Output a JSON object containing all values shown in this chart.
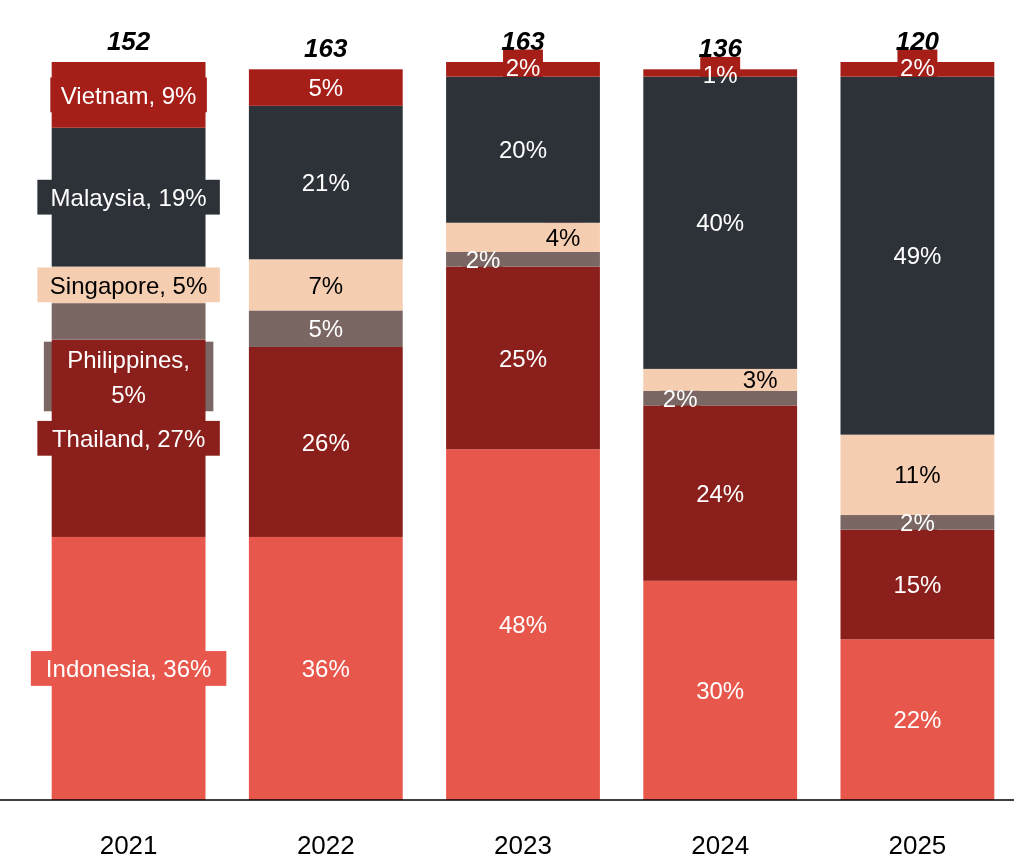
{
  "chart_data": {
    "type": "bar",
    "stacked": true,
    "categories": [
      "2021",
      "2022",
      "2023",
      "2024",
      "2025"
    ],
    "ylim": [
      0,
      101
    ],
    "tick_labels": "x",
    "series": [
      {
        "color": "#e8574c",
        "values": [
          36,
          36,
          48,
          30,
          22
        ],
        "value_labels": [
          "Indonesia, 36%",
          "36%",
          "48%",
          "30%",
          "22%"
        ]
      },
      {
        "color": "#8b1f1b",
        "values": [
          27,
          26,
          25,
          24,
          15
        ],
        "value_labels": [
          "Thailand, 27%",
          "26%",
          "25%",
          "24%",
          "15%"
        ]
      },
      {
        "color": "#7a6663",
        "values": [
          5,
          5,
          2,
          2,
          2
        ],
        "value_labels": [
          "Philippines, 5%",
          "5%",
          "2%",
          "2%",
          "2%"
        ]
      },
      {
        "color": "#f5cdb0",
        "values": [
          5,
          7,
          4,
          3,
          11
        ],
        "value_labels": [
          "Singapore, 5%",
          "7%",
          "4%",
          "3%",
          "11%"
        ]
      },
      {
        "color": "#2d3239",
        "values": [
          19,
          21,
          20,
          40,
          49
        ],
        "value_labels": [
          "Malaysia, 19%",
          "21%",
          "20%",
          "40%",
          "49%"
        ]
      },
      {
        "color": "#a51f18",
        "values": [
          9,
          5,
          2,
          1,
          2
        ],
        "value_labels": [
          "Vietnam, 9%",
          "5%",
          "2%",
          "1%",
          "2%"
        ]
      }
    ],
    "annotations": [
      {
        "text": "152",
        "x": "2021",
        "y": 101
      },
      {
        "text": "163",
        "x": "2022",
        "y": 100
      },
      {
        "text": "163",
        "x": "2023",
        "y": 101
      },
      {
        "text": "136",
        "x": "2024",
        "y": 100
      },
      {
        "text": "120",
        "x": "2025",
        "y": 101
      }
    ]
  }
}
